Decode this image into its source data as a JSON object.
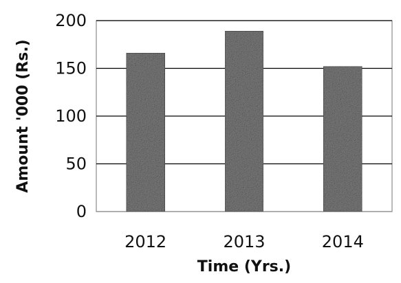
{
  "chart_data": {
    "type": "bar",
    "categories": [
      "2012",
      "2013",
      "2014"
    ],
    "values": [
      166,
      189,
      152
    ],
    "xlabel": "Time (Yrs.)",
    "ylabel": "Amount '000 (Rs.)",
    "ylim": [
      0,
      200
    ],
    "yticks": [
      0,
      50,
      100,
      150,
      200
    ],
    "grid": true,
    "legend": "none",
    "colors": {
      "bar": "#7d7d7d",
      "bar_dark": "#2e2e2e",
      "gridline": "#000000",
      "frame": "#8a8a8a"
    }
  }
}
